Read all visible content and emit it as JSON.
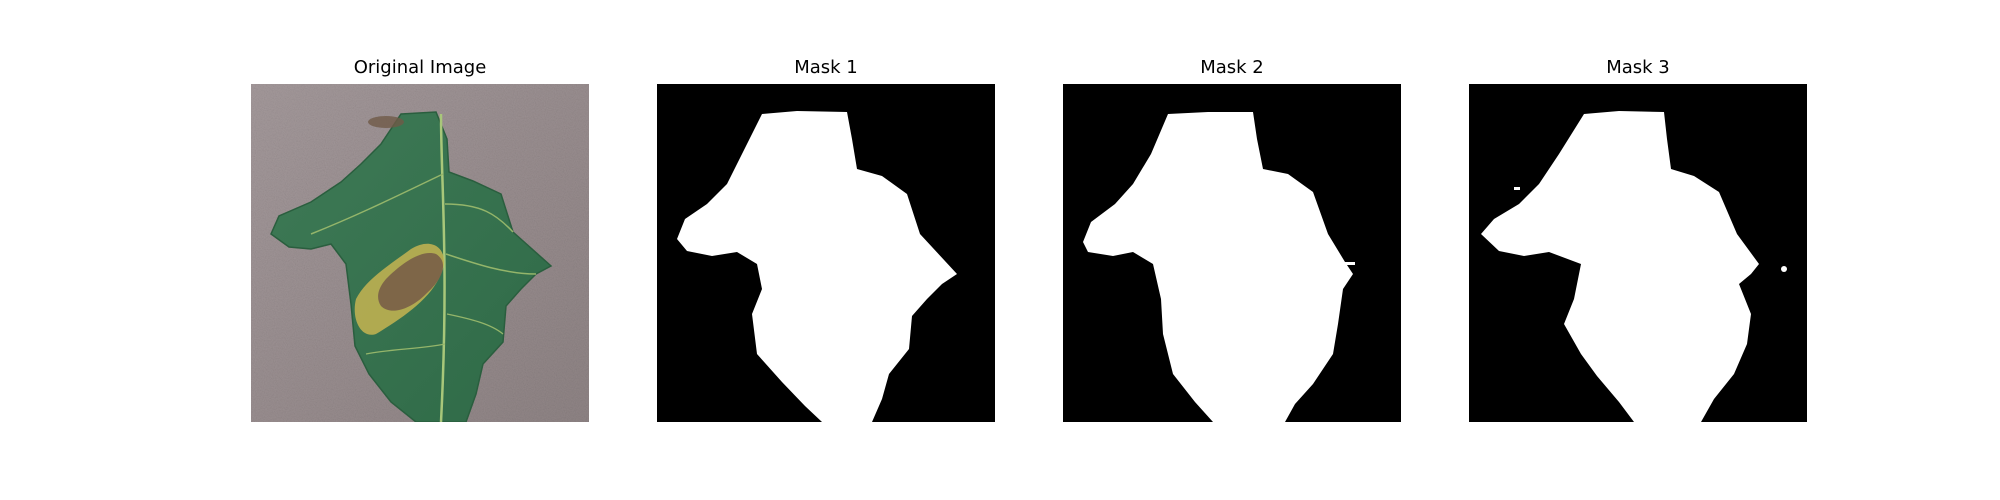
{
  "figure": {
    "panels": [
      {
        "title": "Original Image",
        "kind": "photo",
        "subject": "tomato-leaf-photo"
      },
      {
        "title": "Mask 1",
        "kind": "mask"
      },
      {
        "title": "Mask 2",
        "kind": "mask"
      },
      {
        "title": "Mask 3",
        "kind": "mask"
      }
    ],
    "colors": {
      "mask_background": "#000000",
      "mask_foreground": "#ffffff",
      "photo_background": "#9a8f90",
      "leaf_green": "#3f7f55",
      "leaf_dark": "#2f6945",
      "vein": "#9fbf72",
      "lesion_brown": "#7a6147",
      "lesion_yellow": "#c5b14d"
    }
  }
}
